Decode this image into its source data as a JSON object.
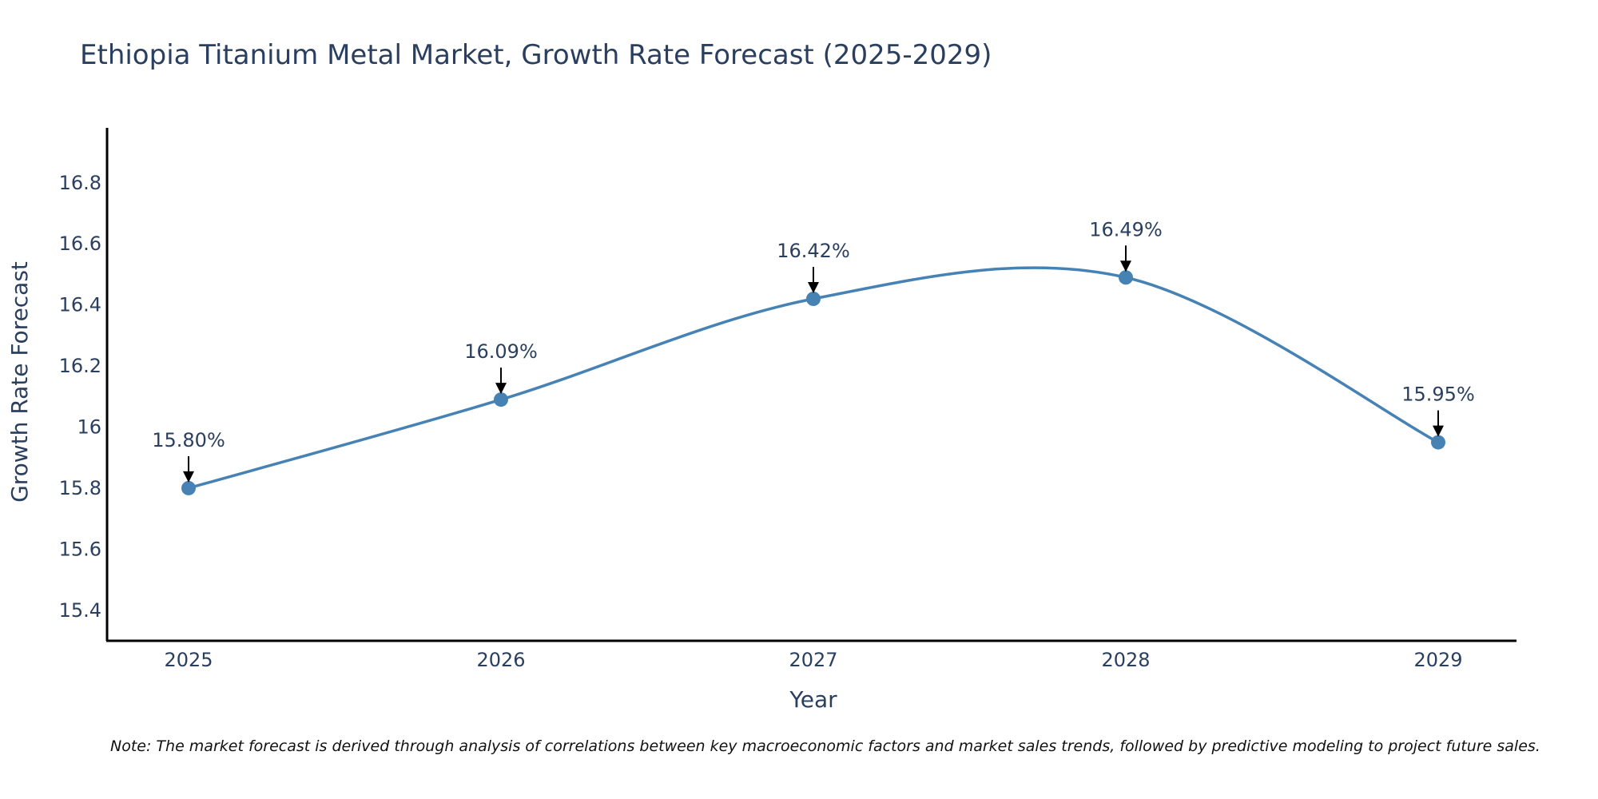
{
  "chart_data": {
    "type": "line",
    "title": "Ethiopia Titanium Metal Market, Growth Rate Forecast (2025-2029)",
    "xlabel": "Year",
    "ylabel": "Growth Rate Forecast",
    "x": [
      "2025",
      "2026",
      "2027",
      "2028",
      "2029"
    ],
    "series": [
      {
        "name": "Growth Rate Forecast",
        "values": [
          15.8,
          16.09,
          16.42,
          16.49,
          15.95
        ],
        "color": "#4682b4",
        "line_shape": "spline",
        "markers": true
      }
    ],
    "data_labels": [
      "15.80%",
      "16.09%",
      "16.42%",
      "16.49%",
      "15.95%"
    ],
    "yticks": [
      15.4,
      15.6,
      15.8,
      16,
      16.2,
      16.4,
      16.6,
      16.8
    ],
    "ytick_labels": [
      "15.4",
      "15.6",
      "15.8",
      "16",
      "16.2",
      "16.4",
      "16.6",
      "16.8"
    ],
    "ylim": [
      15.3,
      16.98
    ],
    "grid": false,
    "note": "Note: The market forecast is derived through analysis of correlations between key macroeconomic factors and market sales trends, followed by predictive modeling to project future sales."
  }
}
